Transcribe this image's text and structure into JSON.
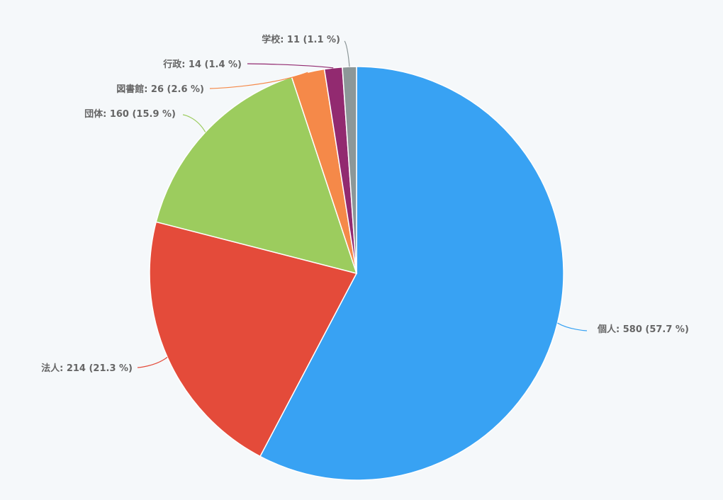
{
  "chart_data": {
    "type": "pie",
    "title": "",
    "legend": "none",
    "start": "top",
    "direction": "clockwise",
    "slices": [
      {
        "label": "個人",
        "value": 580,
        "percent": 57.7,
        "color": "#38a2f3",
        "data_label": "個人: 580 (57.7 %)"
      },
      {
        "label": "法人",
        "value": 214,
        "percent": 21.3,
        "color": "#e44b3a",
        "data_label": "法人: 214 (21.3 %)"
      },
      {
        "label": "団体",
        "value": 160,
        "percent": 15.9,
        "color": "#9ccc5e",
        "data_label": "団体: 160 (15.9 %)"
      },
      {
        "label": "図書館",
        "value": 26,
        "percent": 2.6,
        "color": "#f58949",
        "data_label": "図書館: 26 (2.6 %)"
      },
      {
        "label": "行政",
        "value": 14,
        "percent": 1.4,
        "color": "#922a70",
        "data_label": "行政: 14 (1.4 %)"
      },
      {
        "label": "学校",
        "value": 11,
        "percent": 1.1,
        "color": "#8c9798",
        "data_label": "学校: 11 (1.1 %)"
      }
    ]
  }
}
